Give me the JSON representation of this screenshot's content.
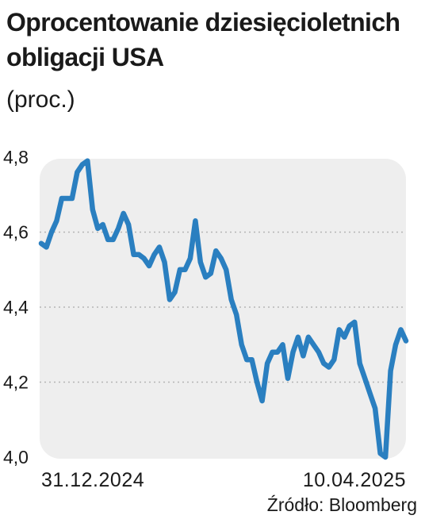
{
  "header": {
    "title": "Oprocentowanie dziesięcioletnich obligacji USA",
    "subtitle": "(proc.)"
  },
  "source": "Źródło: Bloomberg",
  "colors": {
    "line": "#2a7fc0",
    "panel": "#eeeeee",
    "grid": "#b5b5b5"
  },
  "chart_data": {
    "type": "line",
    "title": "Oprocentowanie dziesięcioletnich obligacji USA",
    "subtitle": "(proc.)",
    "x_tick_labels": [
      "31.12.2024",
      "10.04.2025"
    ],
    "y_ticks": [
      4.0,
      4.2,
      4.4,
      4.6,
      4.8
    ],
    "y_tick_labels": [
      "4,0",
      "4,2",
      "4,4",
      "4,6",
      "4,8"
    ],
    "ylim": [
      4.0,
      4.8
    ],
    "grid": true,
    "legend": "none",
    "series": [
      {
        "values": [
          4.57,
          4.56,
          4.6,
          4.63,
          4.69,
          4.69,
          4.69,
          4.76,
          4.78,
          4.79,
          4.66,
          4.61,
          4.62,
          4.58,
          4.58,
          4.61,
          4.65,
          4.62,
          4.54,
          4.54,
          4.53,
          4.51,
          4.54,
          4.56,
          4.52,
          4.42,
          4.44,
          4.5,
          4.5,
          4.53,
          4.63,
          4.52,
          4.48,
          4.49,
          4.55,
          4.53,
          4.5,
          4.42,
          4.38,
          4.3,
          4.26,
          4.26,
          4.2,
          4.15,
          4.25,
          4.28,
          4.28,
          4.3,
          4.21,
          4.28,
          4.32,
          4.27,
          4.32,
          4.3,
          4.28,
          4.25,
          4.24,
          4.26,
          4.34,
          4.32,
          4.35,
          4.36,
          4.25,
          4.21,
          4.17,
          4.13,
          4.01,
          4.0,
          4.23,
          4.3,
          4.34,
          4.31
        ]
      }
    ]
  }
}
